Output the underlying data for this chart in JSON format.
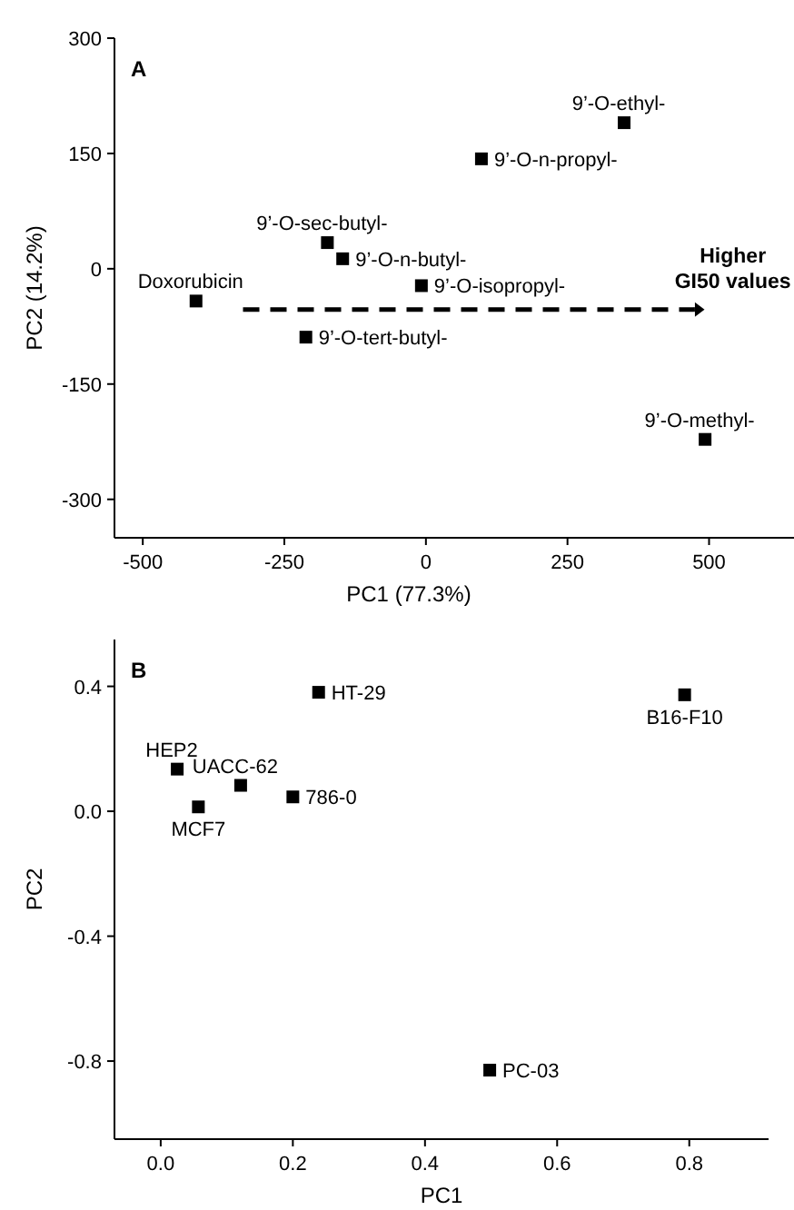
{
  "chart_data": [
    {
      "type": "scatter",
      "title": "A",
      "xlabel": "PC1 (77.3%)",
      "ylabel": "PC2 (14.2%)",
      "x": [
        -406,
        -174,
        -147,
        -8,
        -212,
        98,
        350,
        493
      ],
      "values": [
        -42,
        34,
        13,
        -22,
        -89,
        143,
        190,
        -222
      ],
      "color": "#000000",
      "marker": "square",
      "xlim": [
        -550,
        650
      ],
      "ylim": [
        -350,
        300
      ],
      "xticks": [
        -500,
        -250,
        0,
        250,
        500
      ],
      "yticks": [
        -300,
        -150,
        0,
        150,
        300
      ],
      "annotations": [
        {
          "text": "Doxorubicin",
          "x": -406,
          "y": -42
        },
        {
          "text": "9’-O-sec-butyl-",
          "x": -174,
          "y": 34
        },
        {
          "text": "9’-O-n-butyl-",
          "x": -147,
          "y": 13
        },
        {
          "text": "9’-O-isopropyl-",
          "x": -8,
          "y": -22
        },
        {
          "text": "9’-O-tert-butyl-",
          "x": -212,
          "y": -89
        },
        {
          "text": "9’-O-n-propyl-",
          "x": 98,
          "y": 143
        },
        {
          "text": "9’-O-ethyl-",
          "x": 350,
          "y": 190
        },
        {
          "text": "9’-O-methyl-",
          "x": 493,
          "y": -222
        },
        "Higher GI50 values"
      ]
    },
    {
      "type": "scatter",
      "title": "B",
      "xlabel": "PC1",
      "ylabel": "PC2",
      "x": [
        0.239,
        0.793,
        0.025,
        0.121,
        0.2,
        0.057,
        0.498
      ],
      "values": [
        0.381,
        0.373,
        0.135,
        0.083,
        0.046,
        0.014,
        -0.829
      ],
      "color": "#000000",
      "marker": "square",
      "xlim": [
        -0.07,
        0.92
      ],
      "ylim": [
        -1.05,
        0.55
      ],
      "xticks": [
        {
          "value": 0,
          "label": "0.0"
        },
        {
          "value": 0.2,
          "label": "0.2"
        },
        {
          "value": 0.4,
          "label": "0.4"
        },
        {
          "value": 0.6,
          "label": "0.6"
        },
        {
          "value": 0.8,
          "label": "0.8"
        }
      ],
      "yticks": [
        {
          "value": -0.8,
          "label": "-0.8"
        },
        {
          "value": -0.4,
          "label": "-0.4"
        },
        {
          "value": 0,
          "label": "0.0"
        },
        {
          "value": 0.4,
          "label": "0.4"
        }
      ],
      "annotations": [
        {
          "text": "HT-29",
          "x": 0.239,
          "y": 0.381
        },
        {
          "text": "B16-F10",
          "x": 0.793,
          "y": 0.373
        },
        {
          "text": "HEP2",
          "x": 0.025,
          "y": 0.135
        },
        {
          "text": "UACC-62",
          "x": 0.121,
          "y": 0.083
        },
        {
          "text": "786-0",
          "x": 0.2,
          "y": 0.046
        },
        {
          "text": "MCF7",
          "x": 0.057,
          "y": 0.014
        },
        {
          "text": "PC-03",
          "x": 0.498,
          "y": -0.829
        }
      ]
    }
  ]
}
